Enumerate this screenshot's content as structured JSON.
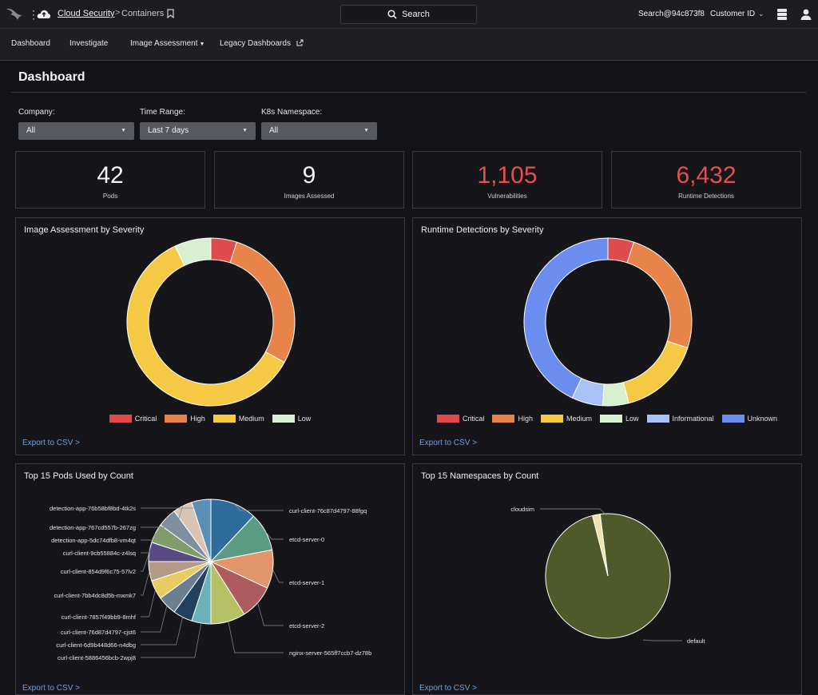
{
  "topbar": {
    "app_name": "Cloud Security",
    "breadcrumb_sep": ">",
    "page": "Containers",
    "search_label": "Search",
    "user_handle": "Search@94c873f8",
    "customer_id": "Customer ID"
  },
  "nav": {
    "items": [
      "Dashboard",
      "Investigate",
      "Image Assessment",
      "Legacy Dashboards"
    ]
  },
  "page": {
    "title": "Dashboard"
  },
  "filters": [
    {
      "label": "Company:",
      "value": "All"
    },
    {
      "label": "Time Range:",
      "value": "Last 7 days"
    },
    {
      "label": "K8s Namespace:",
      "value": "All"
    }
  ],
  "stats": [
    {
      "value": "42",
      "label": "Pods",
      "alert": false
    },
    {
      "value": "9",
      "label": "Images Assessed",
      "alert": false
    },
    {
      "value": "1,105",
      "label": "Vulnerabilities",
      "alert": true
    },
    {
      "value": "6,432",
      "label": "Runtime Detections",
      "alert": true
    }
  ],
  "export_label": "Export to CSV >",
  "colors": {
    "critical": "#e04b4b",
    "high": "#e8834a",
    "medium": "#f6c945",
    "low": "#d7f0cf",
    "informational": "#a9c2f5",
    "unknown": "#6b8df0",
    "default_ns": "#4f5a2b",
    "cloudsim": "#f0e2a8"
  },
  "chart_data": [
    {
      "type": "pie",
      "title": "Image Assessment by Severity",
      "donut": true,
      "categories": [
        "Critical",
        "High",
        "Medium",
        "Low"
      ],
      "values": [
        5,
        28,
        60,
        7
      ]
    },
    {
      "type": "pie",
      "title": "Runtime Detections by Severity",
      "donut": true,
      "categories": [
        "Critical",
        "High",
        "Medium",
        "Low",
        "Informational",
        "Unknown"
      ],
      "values": [
        5,
        25,
        16,
        5,
        6,
        43
      ]
    },
    {
      "type": "pie",
      "title": "Top 15 Pods Used by Count",
      "categories": [
        "curl-client-76c87d4797-88fgq",
        "etcd-server-0",
        "etcd-server-1",
        "etcd-server-2",
        "nginx-server-565ff7ccb7-dz78b",
        "curl-client-5886456bcb-2wpj8",
        "curl-client-6d9b448d66-n4dbg",
        "curl-client-76d87d4797-cjst6",
        "curl-client-7857f49bb9-8mhf",
        "curl-client-7bb4dc8d5b-mxmk7",
        "curl-client-854d9f6c75-57lv2",
        "curl-client-9cb55884c-z4lsq",
        "detection-app-5dc74dfb8-vm4qt",
        "detection-app-767cd557b-267zg",
        "detection-app-76b58bf8bd-4tk2s"
      ],
      "values": [
        12,
        10,
        10,
        9,
        9,
        5,
        5,
        5,
        5,
        5,
        5,
        5,
        5,
        5,
        5
      ]
    },
    {
      "type": "pie",
      "title": "Top 15 Namespaces by Count",
      "categories": [
        "default",
        "cloudsim"
      ],
      "values": [
        98,
        2
      ]
    }
  ]
}
